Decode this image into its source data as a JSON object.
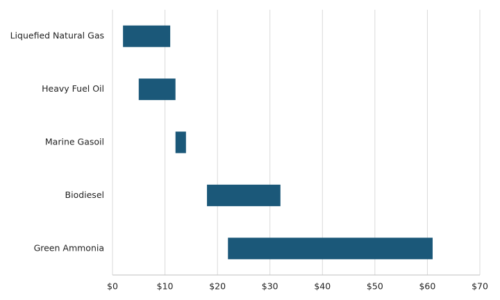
{
  "chart_data": {
    "type": "range-bar",
    "categories": [
      "Liquefied Natural Gas",
      "Heavy Fuel Oil",
      "Marine Gasoil",
      "Biodiesel",
      "Green Ammonia"
    ],
    "low": [
      2,
      5,
      12,
      18,
      22
    ],
    "high": [
      11,
      12,
      14,
      32,
      61
    ],
    "color": "#1b5879",
    "xlim": [
      0,
      70
    ],
    "xticks": [
      {
        "value": 0,
        "label": "$0"
      },
      {
        "value": 10,
        "label": "$10"
      },
      {
        "value": 20,
        "label": "$20"
      },
      {
        "value": 30,
        "label": "$30"
      },
      {
        "value": 40,
        "label": "$40"
      },
      {
        "value": 50,
        "label": "$50"
      },
      {
        "value": 60,
        "label": "$60"
      },
      {
        "value": 70,
        "label": "$70"
      }
    ],
    "grid": true
  }
}
